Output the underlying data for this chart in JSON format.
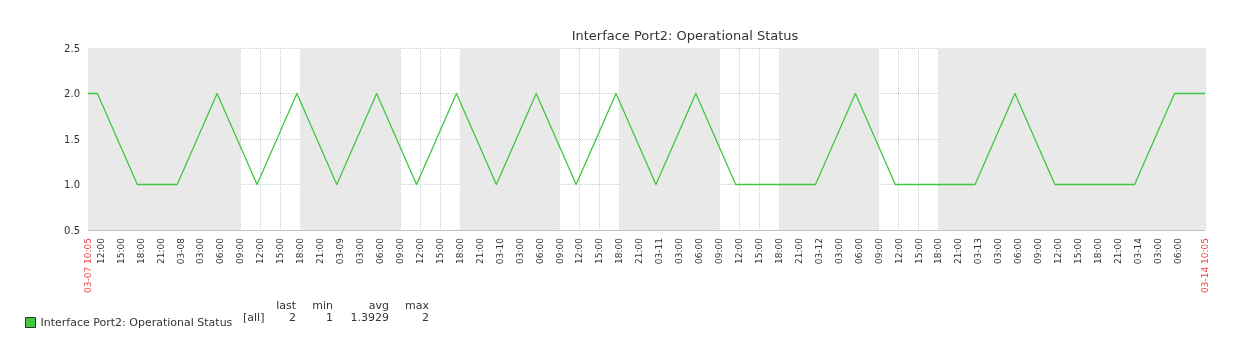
{
  "chart_data": {
    "type": "line",
    "title": "Interface Port2: Operational Status",
    "x": [
      "--03-07T10:05",
      "--03-07T11:30",
      "--03-07T17:30",
      "--03-07T23:30",
      "--03-08T05:30",
      "--03-08T11:30",
      "--03-08T17:30",
      "--03-08T23:30",
      "--03-09T05:30",
      "--03-09T11:30",
      "--03-09T17:30",
      "--03-09T23:30",
      "--03-10T05:30",
      "--03-10T11:30",
      "--03-10T17:30",
      "--03-10T23:30",
      "--03-11T05:30",
      "--03-11T11:30",
      "--03-11T23:30",
      "--03-12T05:30",
      "--03-12T11:30",
      "--03-12T23:30",
      "--03-13T05:30",
      "--03-13T11:30",
      "--03-13T23:30",
      "--03-14T05:30",
      "--03-14T10:05"
    ],
    "series": [
      {
        "name": "Interface Port2: Operational Status",
        "color": "#3ec83e",
        "values": [
          2,
          2,
          1,
          1,
          2,
          1,
          2,
          1,
          2,
          1,
          2,
          1,
          2,
          1,
          2,
          1,
          2,
          1,
          1,
          2,
          1,
          1,
          2,
          1,
          1,
          2,
          2
        ]
      }
    ],
    "xlim": [
      "--03-07T10:05",
      "--03-14T10:05"
    ],
    "xticks": [
      {
        "value": "--03-07T10:05",
        "label": "03-07 10:05"
      },
      {
        "value": "--03-07T12:00",
        "label": "12:00"
      },
      {
        "value": "--03-07T15:00",
        "label": "15:00"
      },
      {
        "value": "--03-07T18:00",
        "label": "18:00"
      },
      {
        "value": "--03-07T21:00",
        "label": "21:00"
      },
      {
        "value": "--03-08T00:00",
        "label": "03-08"
      },
      {
        "value": "--03-08T03:00",
        "label": "03:00"
      },
      {
        "value": "--03-08T06:00",
        "label": "06:00"
      },
      {
        "value": "--03-08T09:00",
        "label": "09:00"
      },
      {
        "value": "--03-08T12:00",
        "label": "12:00"
      },
      {
        "value": "--03-08T15:00",
        "label": "15:00"
      },
      {
        "value": "--03-08T18:00",
        "label": "18:00"
      },
      {
        "value": "--03-08T21:00",
        "label": "21:00"
      },
      {
        "value": "--03-09T00:00",
        "label": "03-09"
      },
      {
        "value": "--03-09T03:00",
        "label": "03:00"
      },
      {
        "value": "--03-09T06:00",
        "label": "06:00"
      },
      {
        "value": "--03-09T09:00",
        "label": "09:00"
      },
      {
        "value": "--03-09T12:00",
        "label": "12:00"
      },
      {
        "value": "--03-09T15:00",
        "label": "15:00"
      },
      {
        "value": "--03-09T18:00",
        "label": "18:00"
      },
      {
        "value": "--03-09T21:00",
        "label": "21:00"
      },
      {
        "value": "--03-10T00:00",
        "label": "03-10"
      },
      {
        "value": "--03-10T03:00",
        "label": "03:00"
      },
      {
        "value": "--03-10T06:00",
        "label": "06:00"
      },
      {
        "value": "--03-10T09:00",
        "label": "09:00"
      },
      {
        "value": "--03-10T12:00",
        "label": "12:00"
      },
      {
        "value": "--03-10T15:00",
        "label": "15:00"
      },
      {
        "value": "--03-10T18:00",
        "label": "18:00"
      },
      {
        "value": "--03-10T21:00",
        "label": "21:00"
      },
      {
        "value": "--03-11T00:00",
        "label": "03-11"
      },
      {
        "value": "--03-11T03:00",
        "label": "03:00"
      },
      {
        "value": "--03-11T06:00",
        "label": "06:00"
      },
      {
        "value": "--03-11T09:00",
        "label": "09:00"
      },
      {
        "value": "--03-11T12:00",
        "label": "12:00"
      },
      {
        "value": "--03-11T15:00",
        "label": "15:00"
      },
      {
        "value": "--03-11T18:00",
        "label": "18:00"
      },
      {
        "value": "--03-11T21:00",
        "label": "21:00"
      },
      {
        "value": "--03-12T00:00",
        "label": "03-12"
      },
      {
        "value": "--03-12T03:00",
        "label": "03:00"
      },
      {
        "value": "--03-12T06:00",
        "label": "06:00"
      },
      {
        "value": "--03-12T09:00",
        "label": "09:00"
      },
      {
        "value": "--03-12T12:00",
        "label": "12:00"
      },
      {
        "value": "--03-12T15:00",
        "label": "15:00"
      },
      {
        "value": "--03-12T18:00",
        "label": "18:00"
      },
      {
        "value": "--03-12T21:00",
        "label": "21:00"
      },
      {
        "value": "--03-13T00:00",
        "label": "03-13"
      },
      {
        "value": "--03-13T03:00",
        "label": "03:00"
      },
      {
        "value": "--03-13T06:00",
        "label": "06:00"
      },
      {
        "value": "--03-13T09:00",
        "label": "09:00"
      },
      {
        "value": "--03-13T12:00",
        "label": "12:00"
      },
      {
        "value": "--03-13T15:00",
        "label": "15:00"
      },
      {
        "value": "--03-13T18:00",
        "label": "18:00"
      },
      {
        "value": "--03-13T21:00",
        "label": "21:00"
      },
      {
        "value": "--03-14T00:00",
        "label": "03-14"
      },
      {
        "value": "--03-14T03:00",
        "label": "03:00"
      },
      {
        "value": "--03-14T06:00",
        "label": "06:00"
      },
      {
        "value": "--03-14T10:05",
        "label": "03-14 10:05"
      }
    ],
    "ylim": [
      0.5,
      2.5
    ],
    "yticks": [
      0.5,
      {
        "value": 1,
        "label": "1.0"
      },
      1.5,
      {
        "value": 2,
        "label": "2.0"
      },
      2.5
    ],
    "bands": [
      {
        "axis": "x",
        "from": "--03-07T10:05",
        "to": "--03-08T09:00",
        "color": "#e9e9e9"
      },
      {
        "axis": "x",
        "from": "--03-08T18:00",
        "to": "--03-09T09:00",
        "color": "#e9e9e9"
      },
      {
        "axis": "x",
        "from": "--03-09T18:00",
        "to": "--03-10T09:00",
        "color": "#e9e9e9"
      },
      {
        "axis": "x",
        "from": "--03-10T18:00",
        "to": "--03-11T09:00",
        "color": "#e9e9e9"
      },
      {
        "axis": "x",
        "from": "--03-11T18:00",
        "to": "--03-12T09:00",
        "color": "#e9e9e9"
      },
      {
        "axis": "x",
        "from": "--03-12T18:00",
        "to": "--03-14T10:05",
        "color": "#e9e9e9"
      }
    ],
    "annotations": [
      "[all]",
      "last",
      "min",
      "avg",
      "max",
      "2",
      "1",
      "1.3929",
      "2"
    ],
    "grid": true,
    "legend": "bottom left",
    "marker": "none",
    "line_style": "solid"
  }
}
